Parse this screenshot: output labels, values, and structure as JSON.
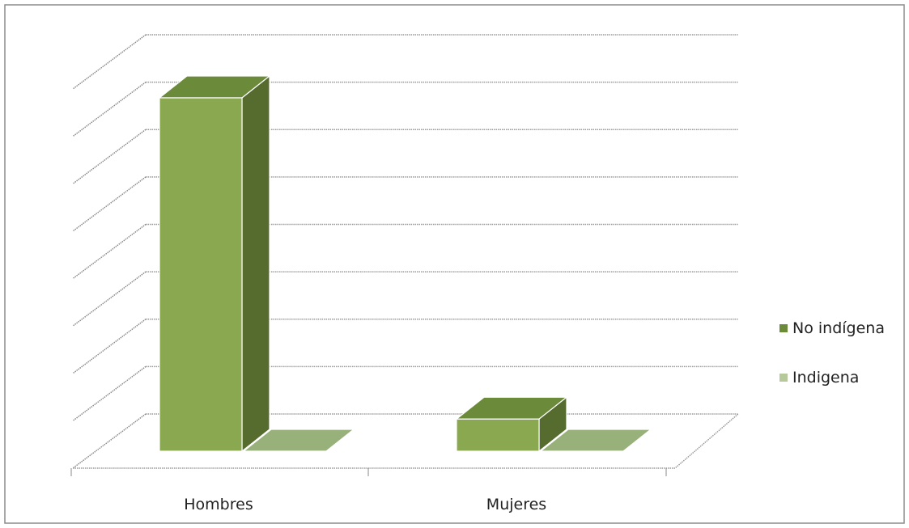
{
  "chart_data": {
    "type": "bar",
    "variant": "3d-clustered-column",
    "categories": [
      "Hombres",
      "Mujeres"
    ],
    "series": [
      {
        "name": "No indígena",
        "values": [
          660,
          60
        ],
        "color": "#8aa84f",
        "top_color": "#6b8a3a",
        "side_color": "#566b2e"
      },
      {
        "name": "Indigena",
        "values": [
          0,
          0
        ],
        "color": "#a5bc82",
        "top_color": "#98b07a",
        "side_color": "#5a6a48"
      }
    ],
    "title": "",
    "xlabel": "",
    "ylabel": "",
    "ylim": [
      0,
      800
    ],
    "gridlines": 8,
    "grid": true,
    "axis_tick_labels_visible": false,
    "legend_position": "right"
  }
}
